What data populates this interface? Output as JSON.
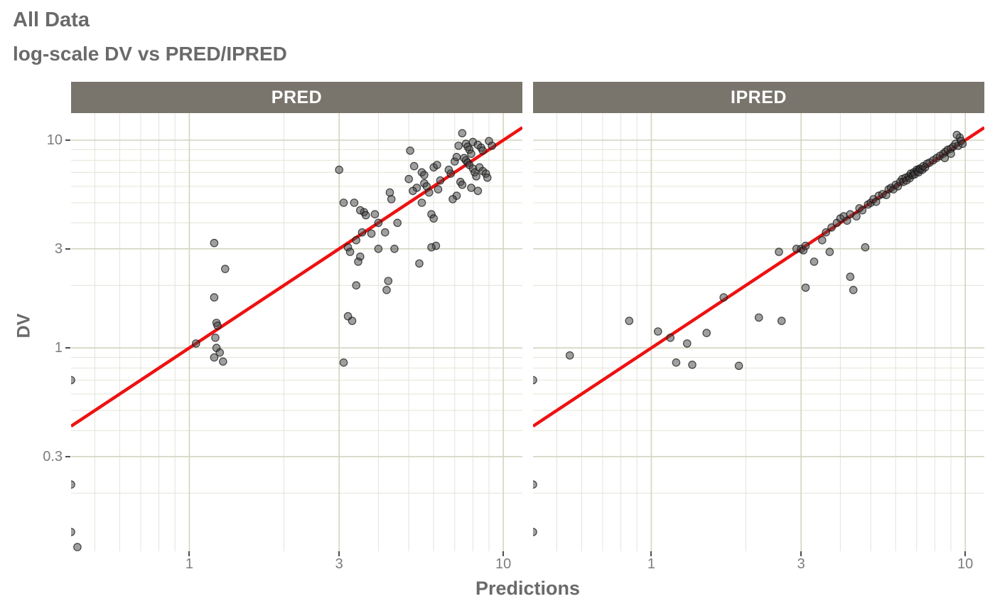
{
  "style": {
    "background": "#ffffff",
    "title_color": "#6a6a6a",
    "strip_bg": "#79756d",
    "strip_text": "#ffffff",
    "tick_label_color": "#7d7d7d",
    "tick_mark_color": "#4d4d4d",
    "grid_minor": "#e4e4d7",
    "grid_major": "#d6d6c4",
    "point_fill": "#404040",
    "point_stroke": "#141414",
    "line_color": "#ee1111"
  },
  "chart_data": {
    "type": "scatter",
    "title": "All Data",
    "subtitle": "log-scale DV vs PRED/IPRED",
    "xlabel": "Predictions",
    "ylabel": "DV",
    "scales": "log-log",
    "grid": true,
    "x_domain": [
      0.42,
      11.5
    ],
    "y_domain": [
      0.105,
      13.5
    ],
    "x_ticks": [
      1,
      3,
      10
    ],
    "y_ticks": [
      0.3,
      1,
      3,
      10
    ],
    "identity_line": {
      "slope": 1,
      "intercept": 0,
      "description": "y = x reference line"
    },
    "facets": [
      {
        "label": "PRED",
        "points": [
          [
            0.42,
            0.7
          ],
          [
            0.42,
            0.22
          ],
          [
            0.42,
            0.13
          ],
          [
            0.44,
            0.11
          ],
          [
            1.05,
            1.05
          ],
          [
            1.2,
            3.2
          ],
          [
            1.3,
            2.4
          ],
          [
            1.2,
            1.75
          ],
          [
            1.22,
            1.32
          ],
          [
            1.23,
            1.28
          ],
          [
            1.21,
            1.12
          ],
          [
            1.22,
            1.0
          ],
          [
            1.25,
            0.95
          ],
          [
            1.2,
            0.9
          ],
          [
            1.28,
            0.86
          ],
          [
            3.0,
            7.2
          ],
          [
            3.1,
            5.0
          ],
          [
            3.2,
            3.05
          ],
          [
            3.25,
            2.9
          ],
          [
            3.4,
            3.3
          ],
          [
            3.5,
            2.75
          ],
          [
            3.45,
            2.6
          ],
          [
            3.6,
            4.5
          ],
          [
            3.65,
            4.35
          ],
          [
            3.5,
            4.6
          ],
          [
            3.35,
            5.0
          ],
          [
            3.9,
            4.4
          ],
          [
            3.55,
            3.6
          ],
          [
            3.8,
            3.55
          ],
          [
            3.4,
            2.0
          ],
          [
            4.3,
            2.1
          ],
          [
            4.25,
            1.9
          ],
          [
            3.2,
            1.42
          ],
          [
            3.3,
            1.35
          ],
          [
            3.1,
            0.85
          ],
          [
            4.0,
            3.0
          ],
          [
            4.5,
            3.0
          ],
          [
            4.2,
            3.6
          ],
          [
            4.4,
            5.2
          ],
          [
            4.35,
            5.6
          ],
          [
            4.6,
            4.0
          ],
          [
            4.0,
            4.0
          ],
          [
            5.05,
            8.9
          ],
          [
            5.0,
            6.5
          ],
          [
            5.2,
            7.5
          ],
          [
            5.5,
            7.0
          ],
          [
            5.6,
            6.8
          ],
          [
            5.6,
            6.2
          ],
          [
            5.7,
            6.0
          ],
          [
            5.8,
            5.6
          ],
          [
            5.5,
            5.0
          ],
          [
            5.9,
            4.4
          ],
          [
            6.0,
            4.2
          ],
          [
            6.1,
            3.1
          ],
          [
            5.9,
            3.05
          ],
          [
            5.4,
            2.55
          ],
          [
            6.2,
            5.8
          ],
          [
            6.3,
            6.4
          ],
          [
            6.0,
            7.4
          ],
          [
            6.15,
            7.6
          ],
          [
            5.3,
            5.9
          ],
          [
            5.15,
            5.7
          ],
          [
            7.4,
            10.8
          ],
          [
            7.6,
            9.6
          ],
          [
            7.7,
            9.3
          ],
          [
            7.8,
            9.0
          ],
          [
            7.9,
            8.6
          ],
          [
            7.5,
            8.2
          ],
          [
            7.6,
            8.0
          ],
          [
            7.7,
            7.8
          ],
          [
            7.8,
            7.6
          ],
          [
            8.0,
            7.3
          ],
          [
            8.1,
            7.0
          ],
          [
            8.2,
            6.7
          ],
          [
            7.3,
            6.3
          ],
          [
            7.4,
            6.1
          ],
          [
            7.9,
            5.9
          ],
          [
            8.3,
            5.7
          ],
          [
            8.0,
            9.8
          ],
          [
            8.3,
            9.5
          ],
          [
            8.5,
            9.2
          ],
          [
            8.6,
            8.9
          ],
          [
            8.4,
            7.4
          ],
          [
            8.6,
            7.1
          ],
          [
            8.8,
            6.9
          ],
          [
            8.9,
            6.6
          ],
          [
            9.0,
            9.9
          ],
          [
            9.2,
            9.4
          ],
          [
            7.1,
            5.4
          ],
          [
            6.9,
            5.2
          ],
          [
            7.0,
            7.9
          ],
          [
            7.1,
            8.3
          ],
          [
            7.2,
            9.4
          ],
          [
            6.8,
            6.9
          ],
          [
            6.7,
            7.2
          ]
        ]
      },
      {
        "label": "IPRED",
        "points": [
          [
            0.42,
            0.7
          ],
          [
            0.42,
            0.22
          ],
          [
            0.42,
            0.13
          ],
          [
            0.55,
            0.92
          ],
          [
            0.85,
            1.35
          ],
          [
            1.05,
            1.2
          ],
          [
            1.15,
            1.12
          ],
          [
            1.2,
            0.85
          ],
          [
            1.35,
            0.83
          ],
          [
            1.3,
            1.05
          ],
          [
            1.5,
            1.18
          ],
          [
            1.7,
            1.75
          ],
          [
            1.9,
            0.82
          ],
          [
            2.2,
            1.4
          ],
          [
            2.6,
            1.35
          ],
          [
            2.55,
            2.9
          ],
          [
            2.9,
            3.0
          ],
          [
            3.0,
            3.0
          ],
          [
            3.05,
            2.95
          ],
          [
            3.1,
            3.1
          ],
          [
            3.1,
            1.95
          ],
          [
            3.3,
            2.6
          ],
          [
            3.5,
            3.3
          ],
          [
            3.6,
            3.6
          ],
          [
            3.7,
            2.9
          ],
          [
            3.75,
            3.8
          ],
          [
            3.9,
            4.0
          ],
          [
            4.0,
            4.2
          ],
          [
            4.1,
            4.3
          ],
          [
            4.2,
            4.1
          ],
          [
            4.3,
            4.4
          ],
          [
            4.5,
            4.3
          ],
          [
            4.6,
            4.7
          ],
          [
            4.7,
            4.6
          ],
          [
            4.3,
            2.2
          ],
          [
            4.4,
            1.9
          ],
          [
            4.8,
            3.05
          ],
          [
            4.9,
            4.9
          ],
          [
            5.0,
            5.0
          ],
          [
            5.1,
            5.2
          ],
          [
            5.2,
            5.05
          ],
          [
            5.3,
            5.4
          ],
          [
            5.45,
            5.5
          ],
          [
            5.6,
            5.45
          ],
          [
            5.7,
            5.8
          ],
          [
            5.8,
            5.9
          ],
          [
            5.9,
            5.8
          ],
          [
            6.0,
            6.1
          ],
          [
            6.1,
            6.0
          ],
          [
            6.2,
            6.3
          ],
          [
            6.3,
            6.5
          ],
          [
            6.35,
            6.3
          ],
          [
            6.45,
            6.6
          ],
          [
            6.5,
            6.4
          ],
          [
            6.6,
            6.7
          ],
          [
            6.65,
            6.55
          ],
          [
            6.7,
            6.9
          ],
          [
            6.8,
            6.8
          ],
          [
            6.85,
            7.0
          ],
          [
            6.9,
            6.85
          ],
          [
            7.0,
            7.2
          ],
          [
            7.05,
            7.1
          ],
          [
            7.1,
            7.0
          ],
          [
            7.15,
            7.3
          ],
          [
            7.2,
            7.25
          ],
          [
            7.3,
            7.2
          ],
          [
            7.35,
            7.5
          ],
          [
            7.45,
            7.4
          ],
          [
            7.55,
            7.7
          ],
          [
            7.7,
            7.8
          ],
          [
            7.9,
            8.0
          ],
          [
            8.1,
            8.2
          ],
          [
            8.3,
            8.4
          ],
          [
            8.5,
            8.6
          ],
          [
            8.65,
            8.8
          ],
          [
            8.8,
            9.0
          ],
          [
            9.0,
            9.1
          ],
          [
            9.15,
            9.3
          ],
          [
            9.3,
            9.6
          ],
          [
            9.5,
            9.4
          ],
          [
            9.6,
            10.3
          ],
          [
            9.4,
            10.6
          ],
          [
            9.0,
            8.6
          ],
          [
            8.6,
            8.2
          ],
          [
            9.7,
            9.9
          ],
          [
            9.8,
            9.6
          ]
        ]
      }
    ]
  }
}
